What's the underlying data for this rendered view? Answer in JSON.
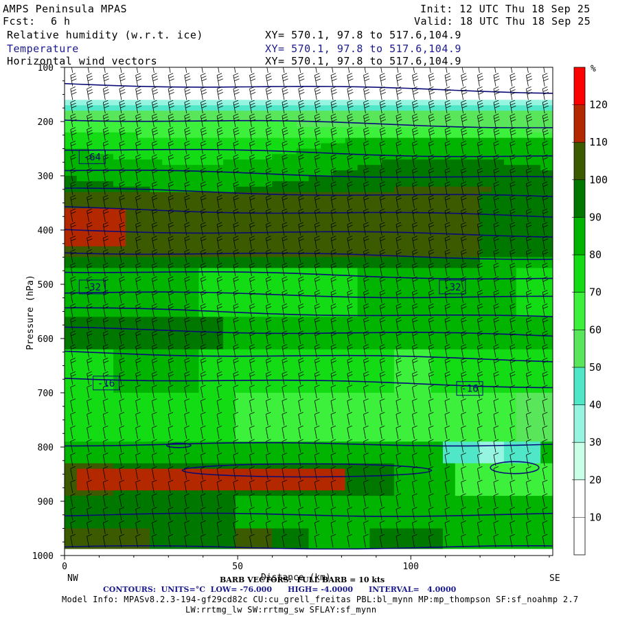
{
  "header": {
    "model": "AMPS Peninsula MPAS",
    "init": "Init: 12 UTC Thu 18 Sep 25",
    "fcst_label": "Fcst:",
    "fcst_value": "6 h",
    "valid": "Valid: 18 UTC Thu 18 Sep 25",
    "field1": "Relative humidity (w.r.t. ice)",
    "field2": "Temperature",
    "field3": "Horizontal wind vectors",
    "xy1": "XY= 570.1, 97.8 to 517.6,104.9",
    "xy2": "XY= 570.1, 97.8 to 517.6,104.9",
    "xy3": "XY= 570.1, 97.8 to 517.6,104.9"
  },
  "footer": {
    "barb": "BARB VECTORS:  FULL BARB = 10 kts",
    "contours": "CONTOURS:  UNITS=°C  LOW= -76.000      HIGH= -4.0000      INTERVAL=   4.0000",
    "model_info": "Model Info: MPASv8.2.3-194-gf29cd82c CU:cu_grell_freitas PBL:bl_mynn MP:mp_thompson SF:sf_noahmp 2.7",
    "model_info2": "LW:rrtmg_lw SW:rrtmg_sw SFLAY:sf_mynn"
  },
  "chart_data": {
    "type": "heatmap",
    "xlabel": "Distance (km)",
    "ylabel": "Pressure (hPa)",
    "xlim": [
      0,
      141
    ],
    "ylim": [
      1000,
      100
    ],
    "x_ticks": [
      0,
      50,
      100
    ],
    "y_ticks": [
      100,
      200,
      300,
      400,
      500,
      600,
      700,
      800,
      900,
      1000
    ],
    "x_end_labels": {
      "left": "NW",
      "right": "SE"
    },
    "colorbar": {
      "unit": "%",
      "levels": [
        10,
        20,
        30,
        40,
        50,
        60,
        70,
        80,
        90,
        100,
        110,
        120
      ],
      "colors": [
        "#ffffff",
        "#ffffff",
        "#c8ffe6",
        "#96f5e0",
        "#50e6c8",
        "#5ae65a",
        "#3cf03c",
        "#14dc14",
        "#00b400",
        "#007800",
        "#3c5a00",
        "#b42800",
        "#ff0000"
      ]
    },
    "contour_labels": [
      {
        "text": "-64",
        "x": 8,
        "p": 265
      },
      {
        "text": "-32",
        "x": 8,
        "p": 505
      },
      {
        "text": "-32",
        "x": 112,
        "p": 505
      },
      {
        "text": "-16",
        "x": 12,
        "p": 682
      },
      {
        "text": "-16",
        "x": 117,
        "p": 692
      }
    ],
    "isotherms_p_left": [
      130,
      195,
      250,
      290,
      325,
      360,
      400,
      440,
      475,
      515,
      545,
      582,
      625,
      672,
      795,
      925,
      985
    ],
    "isotherms_p_right": [
      145,
      210,
      265,
      305,
      340,
      375,
      410,
      452,
      490,
      525,
      562,
      595,
      640,
      688,
      795,
      925,
      985
    ]
  }
}
